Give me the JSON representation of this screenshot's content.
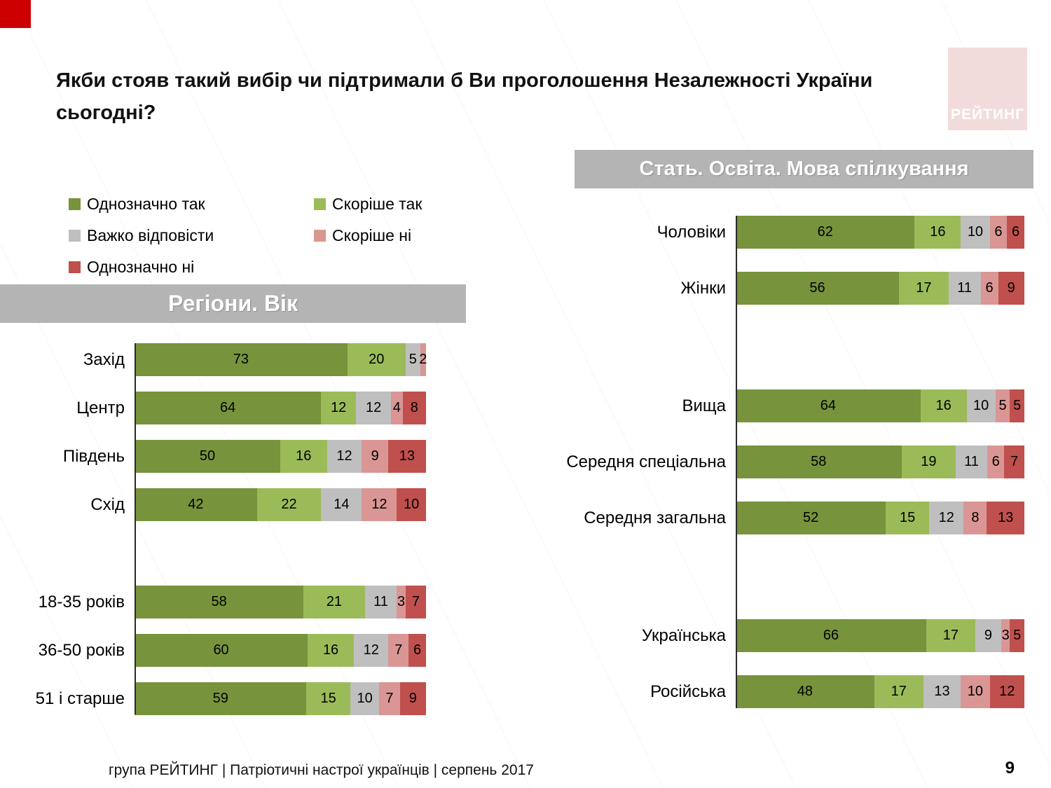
{
  "slide": {
    "title": "Якби стояв такий вибір чи підтримали б Ви проголошення Незалежності України сьогодні?",
    "logo_text": "РЕЙТИНГ",
    "footer_text": "група РЕЙТИНГ  | Патріотичні настрої українців |  серпень 2017",
    "page_number": "9"
  },
  "colors": {
    "definitely_yes": "#77933C",
    "rather_yes": "#9BBB59",
    "hard_to_answer": "#BFBFBF",
    "rather_no": "#D99694",
    "definitely_no": "#C0504D",
    "banner_gray": "#B4B4B4",
    "logo_pink": "#F2DCDB",
    "corner_red": "#CC0000"
  },
  "legend": [
    {
      "label": "Однозначно так",
      "color": "#77933C"
    },
    {
      "label": "Скоріше так",
      "color": "#9BBB59"
    },
    {
      "label": "Важко відповісти",
      "color": "#BFBFBF"
    },
    {
      "label": "Скоріше ні",
      "color": "#D99694"
    },
    {
      "label": "Однозначно ні",
      "color": "#C0504D"
    }
  ],
  "chart_data": [
    {
      "type": "bar",
      "stacked": true,
      "orientation": "horizontal",
      "title": "Регіони. Вік",
      "unit": "%",
      "xlim": [
        0,
        100
      ],
      "series_labels": [
        "Однозначно так",
        "Скоріше так",
        "Важко відповісти",
        "Скоріше ні",
        "Однозначно ні"
      ],
      "groups": [
        {
          "categories": [
            "Захід",
            "Центр",
            "Південь",
            "Схід"
          ],
          "values": [
            [
              73,
              20,
              5,
              2,
              0
            ],
            [
              64,
              12,
              12,
              4,
              8
            ],
            [
              50,
              16,
              12,
              9,
              13
            ],
            [
              42,
              22,
              14,
              12,
              10
            ]
          ]
        },
        {
          "categories": [
            "18-35 років",
            "36-50 років",
            "51 і старше"
          ],
          "values": [
            [
              58,
              21,
              11,
              3,
              7
            ],
            [
              60,
              16,
              12,
              7,
              6
            ],
            [
              59,
              15,
              10,
              7,
              9
            ]
          ]
        }
      ]
    },
    {
      "type": "bar",
      "stacked": true,
      "orientation": "horizontal",
      "title": "Стать. Освіта. Мова спілкування",
      "unit": "%",
      "xlim": [
        0,
        100
      ],
      "series_labels": [
        "Однозначно так",
        "Скоріше так",
        "Важко відповісти",
        "Скоріше ні",
        "Однозначно ні"
      ],
      "groups": [
        {
          "categories": [
            "Чоловіки",
            "Жінки"
          ],
          "values": [
            [
              62,
              16,
              10,
              6,
              6
            ],
            [
              56,
              17,
              11,
              6,
              9
            ]
          ]
        },
        {
          "categories": [
            "Вища",
            "Середня спеціальна",
            "Середня загальна"
          ],
          "values": [
            [
              64,
              16,
              10,
              5,
              5
            ],
            [
              58,
              19,
              11,
              6,
              7
            ],
            [
              52,
              15,
              12,
              8,
              13
            ]
          ]
        },
        {
          "categories": [
            "Українська",
            "Російська"
          ],
          "values": [
            [
              66,
              17,
              9,
              3,
              5
            ],
            [
              48,
              17,
              13,
              10,
              12
            ]
          ]
        }
      ]
    }
  ]
}
